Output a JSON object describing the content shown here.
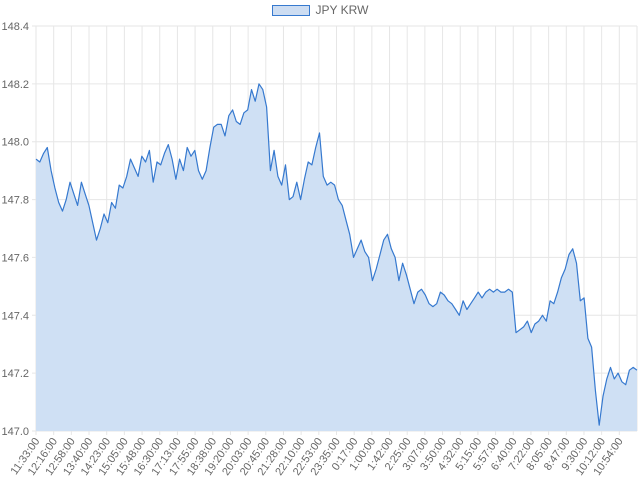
{
  "chart_data": {
    "type": "area",
    "title": "",
    "xlabel": "",
    "ylabel": "",
    "legend": {
      "position": "top-center",
      "entries": [
        "JPY KRW"
      ]
    },
    "grid": true,
    "colors": {
      "line": "#3679cf",
      "fill": "#cfe0f4",
      "grid": "#e6e6e6",
      "text": "#666666"
    },
    "ylim": [
      147.0,
      148.4
    ],
    "y_ticks": [
      "147.0",
      "147.2",
      "147.4",
      "147.6",
      "147.8",
      "148.0",
      "148.2",
      "148.4"
    ],
    "x_tick_labels": [
      "11:33:00",
      "12:16:00",
      "12:58:00",
      "13:40:00",
      "14:23:00",
      "15:05:00",
      "15:48:00",
      "16:30:00",
      "17:13:00",
      "17:55:00",
      "18:38:00",
      "19:20:00",
      "20:03:00",
      "20:45:00",
      "21:28:00",
      "22:10:00",
      "22:53:00",
      "23:35:00",
      "0:17:00",
      "1:00:00",
      "1:42:00",
      "2:25:00",
      "3:07:00",
      "3:50:00",
      "4:32:00",
      "5:15:00",
      "5:57:00",
      "6:40:00",
      "7:22:00",
      "8:05:00",
      "8:47:00",
      "9:30:00",
      "10:12:00",
      "10:54:00"
    ],
    "series": [
      {
        "name": "JPY KRW",
        "values": [
          147.94,
          147.93,
          147.96,
          147.98,
          147.9,
          147.84,
          147.79,
          147.76,
          147.8,
          147.86,
          147.82,
          147.78,
          147.86,
          147.82,
          147.78,
          147.72,
          147.66,
          147.7,
          147.75,
          147.72,
          147.79,
          147.77,
          147.85,
          147.84,
          147.88,
          147.94,
          147.91,
          147.88,
          147.95,
          147.93,
          147.97,
          147.86,
          147.93,
          147.92,
          147.96,
          147.99,
          147.94,
          147.87,
          147.94,
          147.9,
          147.98,
          147.95,
          147.97,
          147.9,
          147.87,
          147.9,
          147.98,
          148.05,
          148.06,
          148.06,
          148.02,
          148.09,
          148.11,
          148.07,
          148.06,
          148.1,
          148.11,
          148.18,
          148.14,
          148.2,
          148.18,
          148.12,
          147.9,
          147.97,
          147.88,
          147.85,
          147.92,
          147.8,
          147.81,
          147.86,
          147.8,
          147.87,
          147.93,
          147.92,
          147.98,
          148.03,
          147.88,
          147.85,
          147.86,
          147.85,
          147.8,
          147.78,
          147.73,
          147.68,
          147.6,
          147.63,
          147.66,
          147.62,
          147.6,
          147.52,
          147.56,
          147.61,
          147.66,
          147.68,
          147.63,
          147.6,
          147.52,
          147.58,
          147.54,
          147.49,
          147.44,
          147.48,
          147.49,
          147.47,
          147.44,
          147.43,
          147.44,
          147.48,
          147.47,
          147.45,
          147.44,
          147.42,
          147.4,
          147.45,
          147.42,
          147.44,
          147.46,
          147.48,
          147.46,
          147.48,
          147.49,
          147.48,
          147.49,
          147.48,
          147.48,
          147.49,
          147.48,
          147.34,
          147.35,
          147.36,
          147.38,
          147.34,
          147.37,
          147.38,
          147.4,
          147.38,
          147.45,
          147.44,
          147.48,
          147.53,
          147.56,
          147.61,
          147.63,
          147.58,
          147.45,
          147.46,
          147.32,
          147.29,
          147.14,
          147.02,
          147.12,
          147.18,
          147.22,
          147.18,
          147.2,
          147.17,
          147.16,
          147.21,
          147.22,
          147.21
        ]
      }
    ]
  }
}
